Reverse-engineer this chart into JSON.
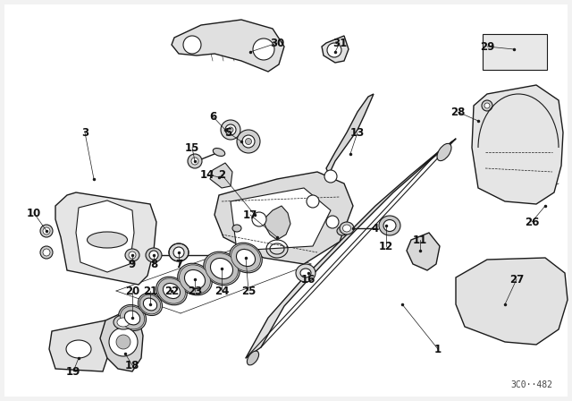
{
  "bg_color": "#f2f2f2",
  "line_color": "#1a1a1a",
  "label_color": "#111111",
  "watermark": "3C0··482",
  "fig_w": 6.4,
  "fig_h": 4.48,
  "dpi": 100
}
